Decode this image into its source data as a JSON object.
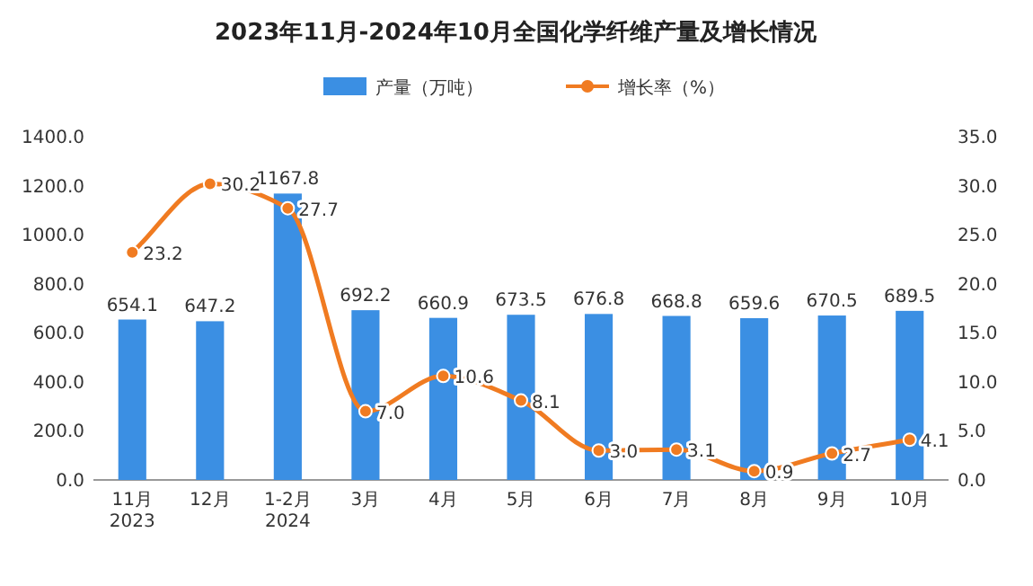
{
  "chart_data": {
    "type": "bar",
    "title": "2023年11月-2024年10月全国化学纤维产量及增长情况",
    "categories": [
      "11月\n2023",
      "12月",
      "1-2月\n2024",
      "3月",
      "4月",
      "5月",
      "6月",
      "7月",
      "8月",
      "9月",
      "10月"
    ],
    "series": [
      {
        "name": "产量（万吨）",
        "color": "#3b8fe3",
        "values": [
          654.1,
          647.2,
          1167.8,
          692.2,
          660.9,
          673.5,
          676.8,
          668.8,
          659.6,
          670.5,
          689.5
        ]
      },
      {
        "name": "增长率（%）",
        "type": "line",
        "axis": "y2",
        "color": "#f07b21",
        "values": [
          23.2,
          30.2,
          27.7,
          7.0,
          10.6,
          8.1,
          3.0,
          3.1,
          0.9,
          2.7,
          4.1
        ],
        "value_labels": [
          "23.2",
          "30.2",
          "27.7",
          "7.0",
          "10.6",
          "8.1",
          "3.0",
          "3.1",
          "0.9",
          "2.7",
          "4.1"
        ]
      }
    ],
    "ylim": [
      0,
      1400
    ],
    "yticks": [
      {
        "value": 0,
        "label": "0.0"
      },
      {
        "value": 200,
        "label": "200.0"
      },
      {
        "value": 400,
        "label": "400.0"
      },
      {
        "value": 600,
        "label": "600.0"
      },
      {
        "value": 800,
        "label": "800.0"
      },
      {
        "value": 1000,
        "label": "1000.0"
      },
      {
        "value": 1200,
        "label": "1200.0"
      },
      {
        "value": 1400,
        "label": "1400.0"
      }
    ],
    "y2lim": [
      0,
      35
    ],
    "y2ticks": [
      {
        "value": 0,
        "label": "0.0"
      },
      {
        "value": 5,
        "label": "5.0"
      },
      {
        "value": 10,
        "label": "10.0"
      },
      {
        "value": 15,
        "label": "15.0"
      },
      {
        "value": 20,
        "label": "20.0"
      },
      {
        "value": 25,
        "label": "25.0"
      },
      {
        "value": 30,
        "label": "30.0"
      },
      {
        "value": 35,
        "label": "35.0"
      }
    ],
    "legend": "top",
    "data_labels": true,
    "marker": "circle"
  }
}
